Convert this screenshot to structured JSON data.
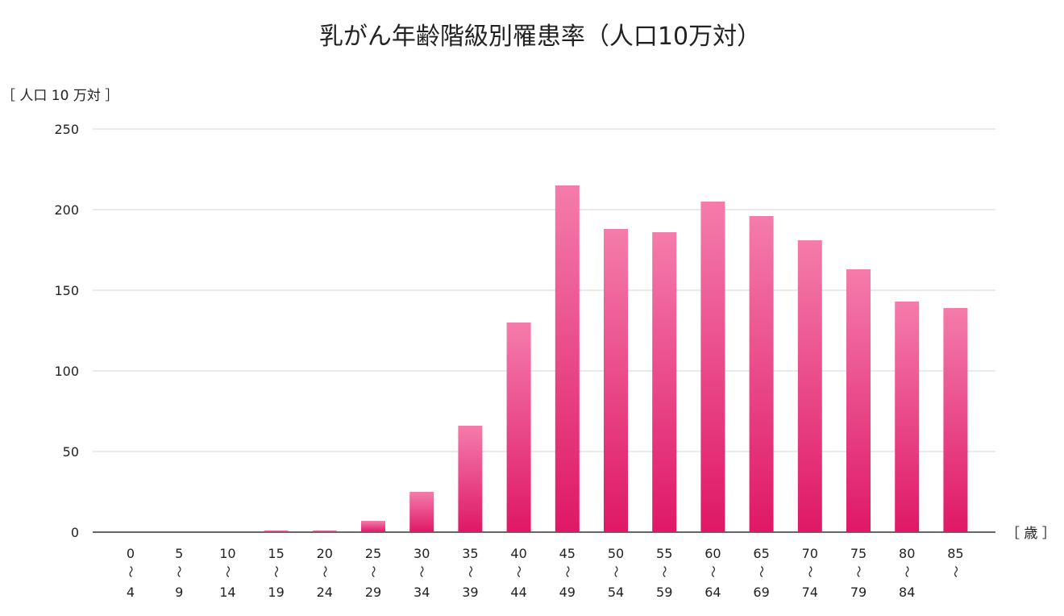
{
  "chart_data": {
    "type": "bar",
    "title": "乳がん年齢階級別罹患率（人口10万対）",
    "ylabel": "［ 人口 10 万対 ］",
    "xlabel": "［ 歳 ］",
    "ylim": [
      0,
      250
    ],
    "yticks": [
      0,
      50,
      100,
      150,
      200,
      250
    ],
    "grid": true,
    "categories": [
      {
        "from": "0",
        "to": "4"
      },
      {
        "from": "5",
        "to": "9"
      },
      {
        "from": "10",
        "to": "14"
      },
      {
        "from": "15",
        "to": "19"
      },
      {
        "from": "20",
        "to": "24"
      },
      {
        "from": "25",
        "to": "29"
      },
      {
        "from": "30",
        "to": "34"
      },
      {
        "from": "35",
        "to": "39"
      },
      {
        "from": "40",
        "to": "44"
      },
      {
        "from": "45",
        "to": "49"
      },
      {
        "from": "50",
        "to": "54"
      },
      {
        "from": "55",
        "to": "59"
      },
      {
        "from": "60",
        "to": "64"
      },
      {
        "from": "65",
        "to": "69"
      },
      {
        "from": "70",
        "to": "74"
      },
      {
        "from": "75",
        "to": "79"
      },
      {
        "from": "80",
        "to": "84"
      },
      {
        "from": "85",
        "to": ""
      }
    ],
    "range_symbol": "〜",
    "values": [
      0,
      0,
      0,
      1,
      1,
      7,
      25,
      66,
      130,
      215,
      188,
      186,
      205,
      196,
      181,
      163,
      143,
      139
    ],
    "colors": {
      "bar_top": "#f47cab",
      "bar_bottom": "#df1866",
      "grid": "#dddddd",
      "axis": "#666666"
    }
  }
}
